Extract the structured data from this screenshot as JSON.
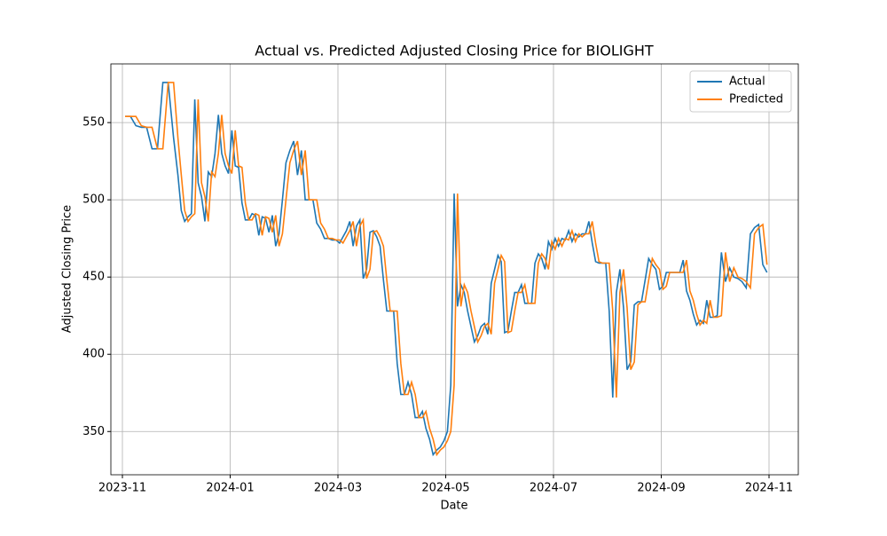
{
  "chart_data": {
    "type": "line",
    "title": "Actual vs. Predicted Adjusted Closing Price for BIOLIGHT",
    "x_label": "Date",
    "y_label": "Adjusted Closing Price",
    "x": [
      "2023-11",
      "2023-11",
      "2023-11",
      "2023-11",
      "2023-11",
      "2023-11",
      "2023-11",
      "2023-11",
      "2023-11",
      "2023-11",
      "2023-12",
      "2023-12",
      "2023-12",
      "2023-12",
      "2023-12",
      "2023-12",
      "2023-12",
      "2023-12",
      "2023-12",
      "2023-12",
      "2023-12",
      "2023-12",
      "2023-12",
      "2023-12",
      "2023-12",
      "2023-12",
      "2024-01",
      "2024-01",
      "2024-01",
      "2024-01",
      "2024-01",
      "2024-01",
      "2024-01",
      "2024-01",
      "2024-01",
      "2024-01",
      "2024-01",
      "2024-01",
      "2024-01",
      "2024-01",
      "2024-01",
      "2024-01",
      "2024-02",
      "2024-02",
      "2024-02",
      "2024-02",
      "2024-02",
      "2024-02",
      "2024-02",
      "2024-02",
      "2024-02",
      "2024-02",
      "2024-02",
      "2024-02",
      "2024-02",
      "2024-02",
      "2024-03",
      "2024-03",
      "2024-03",
      "2024-03",
      "2024-03",
      "2024-03",
      "2024-03",
      "2024-03",
      "2024-03",
      "2024-03",
      "2024-03",
      "2024-03",
      "2024-03",
      "2024-03",
      "2024-03",
      "2024-03",
      "2024-04",
      "2024-04",
      "2024-04",
      "2024-04",
      "2024-04",
      "2024-04",
      "2024-04",
      "2024-04",
      "2024-04",
      "2024-04",
      "2024-04",
      "2024-04",
      "2024-04",
      "2024-04",
      "2024-04",
      "2024-05",
      "2024-05",
      "2024-05",
      "2024-05",
      "2024-05",
      "2024-05",
      "2024-05",
      "2024-05",
      "2024-05",
      "2024-05",
      "2024-05",
      "2024-05",
      "2024-05",
      "2024-05",
      "2024-05",
      "2024-05",
      "2024-06",
      "2024-06",
      "2024-06",
      "2024-06",
      "2024-06",
      "2024-06",
      "2024-06",
      "2024-06",
      "2024-06",
      "2024-06",
      "2024-06",
      "2024-06",
      "2024-06",
      "2024-06",
      "2024-06",
      "2024-06",
      "2024-07",
      "2024-07",
      "2024-07",
      "2024-07",
      "2024-07",
      "2024-07",
      "2024-07",
      "2024-07",
      "2024-07",
      "2024-07",
      "2024-07",
      "2024-07",
      "2024-07",
      "2024-07",
      "2024-07",
      "2024-07",
      "2024-08",
      "2024-08",
      "2024-08",
      "2024-08",
      "2024-08",
      "2024-08",
      "2024-08",
      "2024-08",
      "2024-08",
      "2024-08",
      "2024-08",
      "2024-08",
      "2024-08",
      "2024-08",
      "2024-08",
      "2024-09",
      "2024-09",
      "2024-09",
      "2024-09",
      "2024-09",
      "2024-09",
      "2024-09",
      "2024-09",
      "2024-09",
      "2024-09",
      "2024-09",
      "2024-09",
      "2024-09",
      "2024-09",
      "2024-09",
      "2024-09",
      "2024-10",
      "2024-10",
      "2024-10",
      "2024-10",
      "2024-10",
      "2024-10",
      "2024-10",
      "2024-10",
      "2024-10",
      "2024-10",
      "2024-10",
      "2024-10",
      "2024-10"
    ],
    "series": [
      {
        "name": "Actual",
        "color": "#1f77b4",
        "values": [
          554,
          554,
          548,
          547,
          547,
          533,
          533,
          576,
          576,
          540,
          516,
          493,
          486,
          489,
          491,
          565,
          511,
          502,
          486,
          518,
          515,
          530,
          555,
          530,
          522,
          517,
          545,
          522,
          521,
          498,
          487,
          487,
          491,
          490,
          477,
          489,
          488,
          479,
          490,
          470,
          478,
          500,
          524,
          532,
          538,
          516,
          532,
          500,
          500,
          500,
          485,
          481,
          475,
          475,
          474,
          474,
          472,
          476,
          480,
          486,
          470,
          483,
          487,
          449,
          455,
          479,
          480,
          476,
          470,
          448,
          428,
          428,
          428,
          394,
          374,
          374,
          382,
          374,
          359,
          359,
          363,
          352,
          345,
          335,
          338,
          340,
          344,
          350,
          380,
          504,
          431,
          445,
          440,
          428,
          418,
          408,
          412,
          418,
          420,
          413,
          446,
          455,
          464,
          460,
          414,
          415,
          428,
          440,
          440,
          445,
          433,
          433,
          433,
          459,
          465,
          462,
          455,
          473,
          468,
          475,
          470,
          475,
          474,
          480,
          473,
          478,
          476,
          478,
          478,
          486,
          472,
          460,
          459,
          459,
          459,
          428,
          372,
          440,
          455,
          430,
          390,
          395,
          432,
          434,
          434,
          448,
          462,
          458,
          455,
          442,
          444,
          453,
          453,
          453,
          453,
          453,
          461,
          441,
          435,
          426,
          419,
          422,
          420,
          435,
          424,
          424,
          425,
          466,
          447,
          456,
          450,
          449,
          447,
          443,
          478,
          482,
          484,
          458,
          453
        ]
      },
      {
        "name": "Predicted",
        "color": "#ff7f0e",
        "values": [
          554,
          554,
          554,
          548,
          547,
          547,
          533,
          533,
          576,
          576,
          540,
          516,
          493,
          486,
          489,
          491,
          565,
          511,
          502,
          486,
          518,
          515,
          530,
          555,
          530,
          522,
          517,
          545,
          522,
          521,
          498,
          487,
          487,
          491,
          490,
          477,
          489,
          488,
          479,
          490,
          470,
          478,
          500,
          524,
          532,
          538,
          516,
          532,
          500,
          500,
          500,
          485,
          481,
          475,
          475,
          474,
          474,
          472,
          476,
          480,
          486,
          470,
          483,
          487,
          449,
          455,
          479,
          480,
          476,
          470,
          448,
          428,
          428,
          428,
          394,
          374,
          374,
          382,
          374,
          359,
          359,
          363,
          352,
          345,
          335,
          338,
          340,
          344,
          350,
          380,
          504,
          431,
          445,
          440,
          428,
          418,
          408,
          412,
          418,
          420,
          413,
          446,
          455,
          464,
          460,
          414,
          415,
          428,
          440,
          440,
          445,
          433,
          433,
          433,
          459,
          465,
          462,
          455,
          473,
          468,
          475,
          470,
          475,
          474,
          480,
          473,
          478,
          476,
          478,
          478,
          486,
          472,
          460,
          459,
          459,
          459,
          428,
          372,
          440,
          455,
          430,
          390,
          395,
          432,
          434,
          434,
          448,
          462,
          458,
          455,
          442,
          444,
          453,
          453,
          453,
          453,
          453,
          461,
          441,
          435,
          426,
          419,
          422,
          420,
          435,
          424,
          424,
          425,
          466,
          447,
          456,
          450,
          449,
          447,
          443,
          478,
          482,
          484,
          458
        ]
      }
    ],
    "xlim": [
      "2023-11",
      "2024-11"
    ],
    "xticks": [
      "2023-11",
      "2024-01",
      "2024-03",
      "2024-05",
      "2024-07",
      "2024-09",
      "2024-11"
    ],
    "ylim": [
      322,
      588
    ],
    "yticks": [
      350,
      400,
      450,
      500,
      550
    ],
    "grid": true,
    "legend": "upper right"
  }
}
